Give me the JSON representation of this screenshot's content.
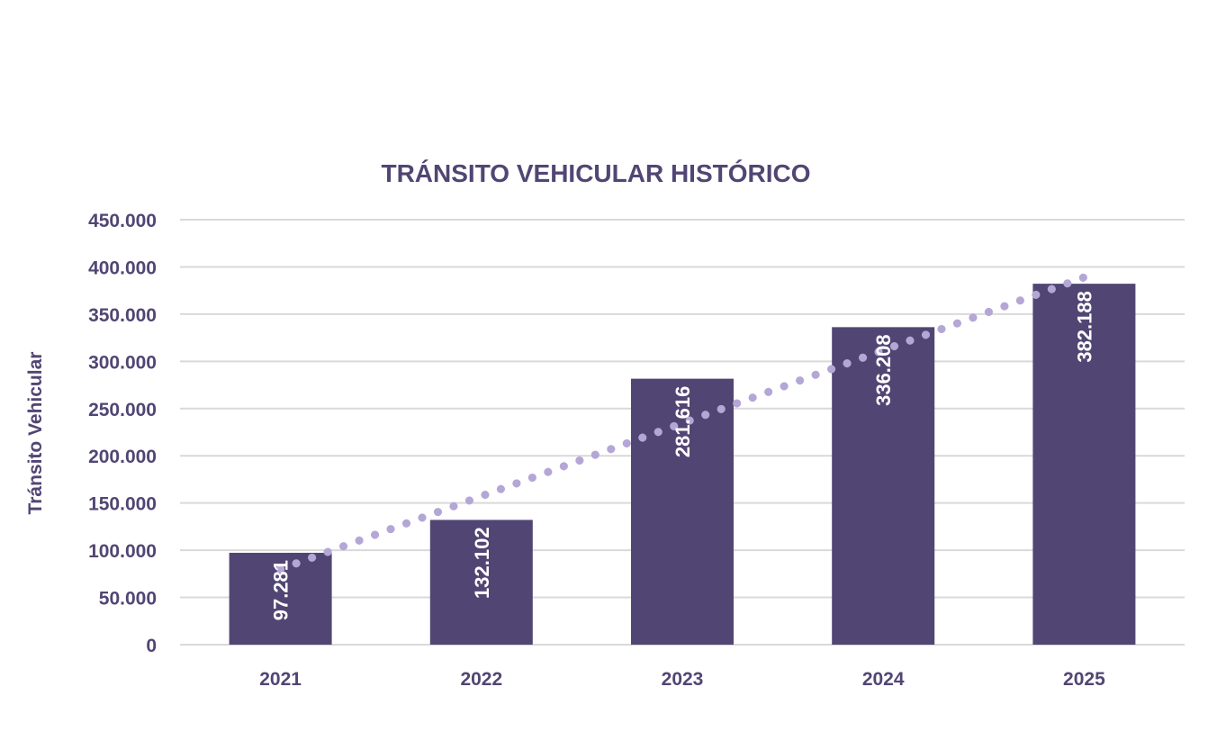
{
  "colors": {
    "bar": "#514673",
    "text": "#514673",
    "grid": "#d9d9d9",
    "trend": "#b4a7d6",
    "label": "#ffffff"
  },
  "chart_data": {
    "type": "bar",
    "title": "TRÁNSITO VEHICULAR HISTÓRICO",
    "xlabel": "",
    "ylabel": "Tránsito Vehicular",
    "categories": [
      "2021",
      "2022",
      "2023",
      "2024",
      "2025"
    ],
    "values": [
      97281,
      132102,
      281616,
      336208,
      382188
    ],
    "data_labels": [
      "97.281",
      "132.102",
      "281.616",
      "336.208",
      "382.188"
    ],
    "ylim": [
      0,
      450000
    ],
    "yticks": [
      0,
      50000,
      100000,
      150000,
      200000,
      250000,
      300000,
      350000,
      400000,
      450000
    ],
    "ytick_labels": [
      "0",
      "50.000",
      "100.000",
      "150.000",
      "200.000",
      "250.000",
      "300.000",
      "350.000",
      "400.000",
      "450.000"
    ],
    "grid": true,
    "legend": "none",
    "trendline": {
      "type": "linear",
      "style": "dotted",
      "start_value": 80000,
      "end_value": 389000
    }
  }
}
